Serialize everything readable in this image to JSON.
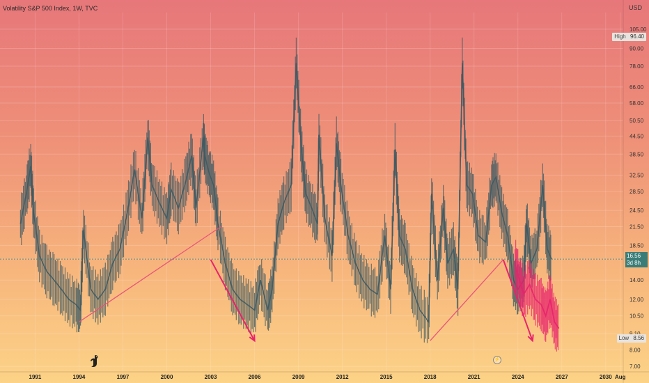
{
  "header": {
    "title": "Volatility S&P 500 Index, 1W, TVC",
    "currency": "USD"
  },
  "price_tags": {
    "high": {
      "name": "High",
      "value": "96.40"
    },
    "low": {
      "name": "Low",
      "value": "8.56"
    },
    "last": {
      "value": "16.56",
      "countdown": "3d 8h"
    }
  },
  "colors": {
    "candles": "#3d5a63",
    "projection": "#e8236c",
    "trendline": "#e8557a",
    "last_tag": "#3a7d78"
  },
  "chart_data": {
    "type": "line",
    "title": "Volatility S&P 500 Index, 1W, TVC",
    "xlabel": "",
    "ylabel": "",
    "y_scale": "log",
    "ylim": [
      6.7,
      120
    ],
    "xlim": [
      1988.6,
      2031.2
    ],
    "x_ticks": [
      "1991",
      "1994",
      "1997",
      "2000",
      "2003",
      "2006",
      "2009",
      "2012",
      "2015",
      "2018",
      "2021",
      "2024",
      "2027",
      "2030",
      "Aug"
    ],
    "y_ticks": [
      "105.00",
      "90.00",
      "78.00",
      "66.00",
      "58.00",
      "50.50",
      "44.50",
      "38.50",
      "32.50",
      "28.50",
      "24.50",
      "21.50",
      "18.50",
      "16.56",
      "14.00",
      "12.00",
      "10.50",
      "9.10",
      "8.00",
      "7.00"
    ],
    "series": [
      {
        "role": "weekly-vix",
        "x": [
          1990.0,
          1990.4,
          1990.7,
          1990.9,
          1991.3,
          1991.8,
          1992.3,
          1992.8,
          1993.3,
          1993.8,
          1994.1,
          1994.3,
          1994.8,
          1995.3,
          1995.8,
          1996.3,
          1996.8,
          1997.3,
          1997.8,
          1998.3,
          1998.7,
          1999.0,
          1999.5,
          2000.0,
          2000.3,
          2000.8,
          2001.3,
          2001.7,
          2002.0,
          2002.5,
          2002.6,
          2002.9,
          2003.2,
          2003.5,
          2004.0,
          2004.5,
          2005.0,
          2005.5,
          2006.0,
          2006.4,
          2006.9,
          2007.2,
          2007.6,
          2008.0,
          2008.5,
          2008.85,
          2009.2,
          2009.5,
          2009.9,
          2010.3,
          2010.4,
          2010.8,
          2011.3,
          2011.6,
          2011.9,
          2012.4,
          2012.9,
          2013.4,
          2013.9,
          2014.4,
          2014.9,
          2015.3,
          2015.6,
          2015.9,
          2016.3,
          2016.8,
          2017.3,
          2017.9,
          2018.1,
          2018.5,
          2018.9,
          2019.2,
          2019.6,
          2019.9,
          2020.2,
          2020.5,
          2020.9,
          2021.3,
          2021.8,
          2022.2,
          2022.5,
          2022.9,
          2023.3,
          2023.7,
          2024.0,
          2024.4,
          2024.6,
          2024.9,
          2025.3,
          2025.7,
          2026.0,
          2026.3
        ],
        "values": [
          22,
          28,
          35,
          24,
          17,
          15,
          14,
          13,
          12,
          11.5,
          11,
          21,
          13,
          12,
          13,
          16,
          18,
          24,
          34,
          23,
          44,
          30,
          26,
          23,
          29,
          25,
          31,
          38,
          25,
          44,
          38,
          33,
          30,
          22,
          16,
          13,
          12,
          11.5,
          11,
          14,
          11,
          13,
          22,
          26,
          30,
          80,
          40,
          28,
          25,
          22,
          45,
          23,
          17,
          42,
          30,
          20,
          16,
          14,
          13,
          12.5,
          20,
          13,
          40,
          20,
          18,
          13,
          11,
          10,
          28,
          14,
          25,
          16,
          18,
          13,
          80,
          30,
          28,
          20,
          19,
          30,
          32,
          24,
          20,
          14,
          13,
          14,
          22,
          16,
          18,
          30,
          18,
          16.56
        ]
      },
      {
        "role": "projection",
        "x": [
          2023.8,
          2024.1,
          2024.4,
          2024.8,
          2025.2,
          2025.6,
          2025.9,
          2026.2,
          2026.5,
          2026.8
        ],
        "values": [
          16,
          14,
          12.5,
          13.5,
          12,
          11.5,
          10.5,
          12,
          10,
          9.5
        ]
      }
    ],
    "annotations": [
      {
        "type": "trendline",
        "x": [
          1994.0,
          2003.7
        ],
        "values": [
          10.0,
          21.5
        ]
      },
      {
        "type": "arrow",
        "x": [
          2003.0,
          2006.0
        ],
        "values": [
          16.5,
          8.6
        ]
      },
      {
        "type": "trendline",
        "x": [
          2018.0,
          2023.0
        ],
        "values": [
          8.6,
          16.5
        ]
      },
      {
        "type": "arrow",
        "x": [
          2023.0,
          2025.0
        ],
        "values": [
          16.5,
          8.6
        ]
      }
    ]
  }
}
